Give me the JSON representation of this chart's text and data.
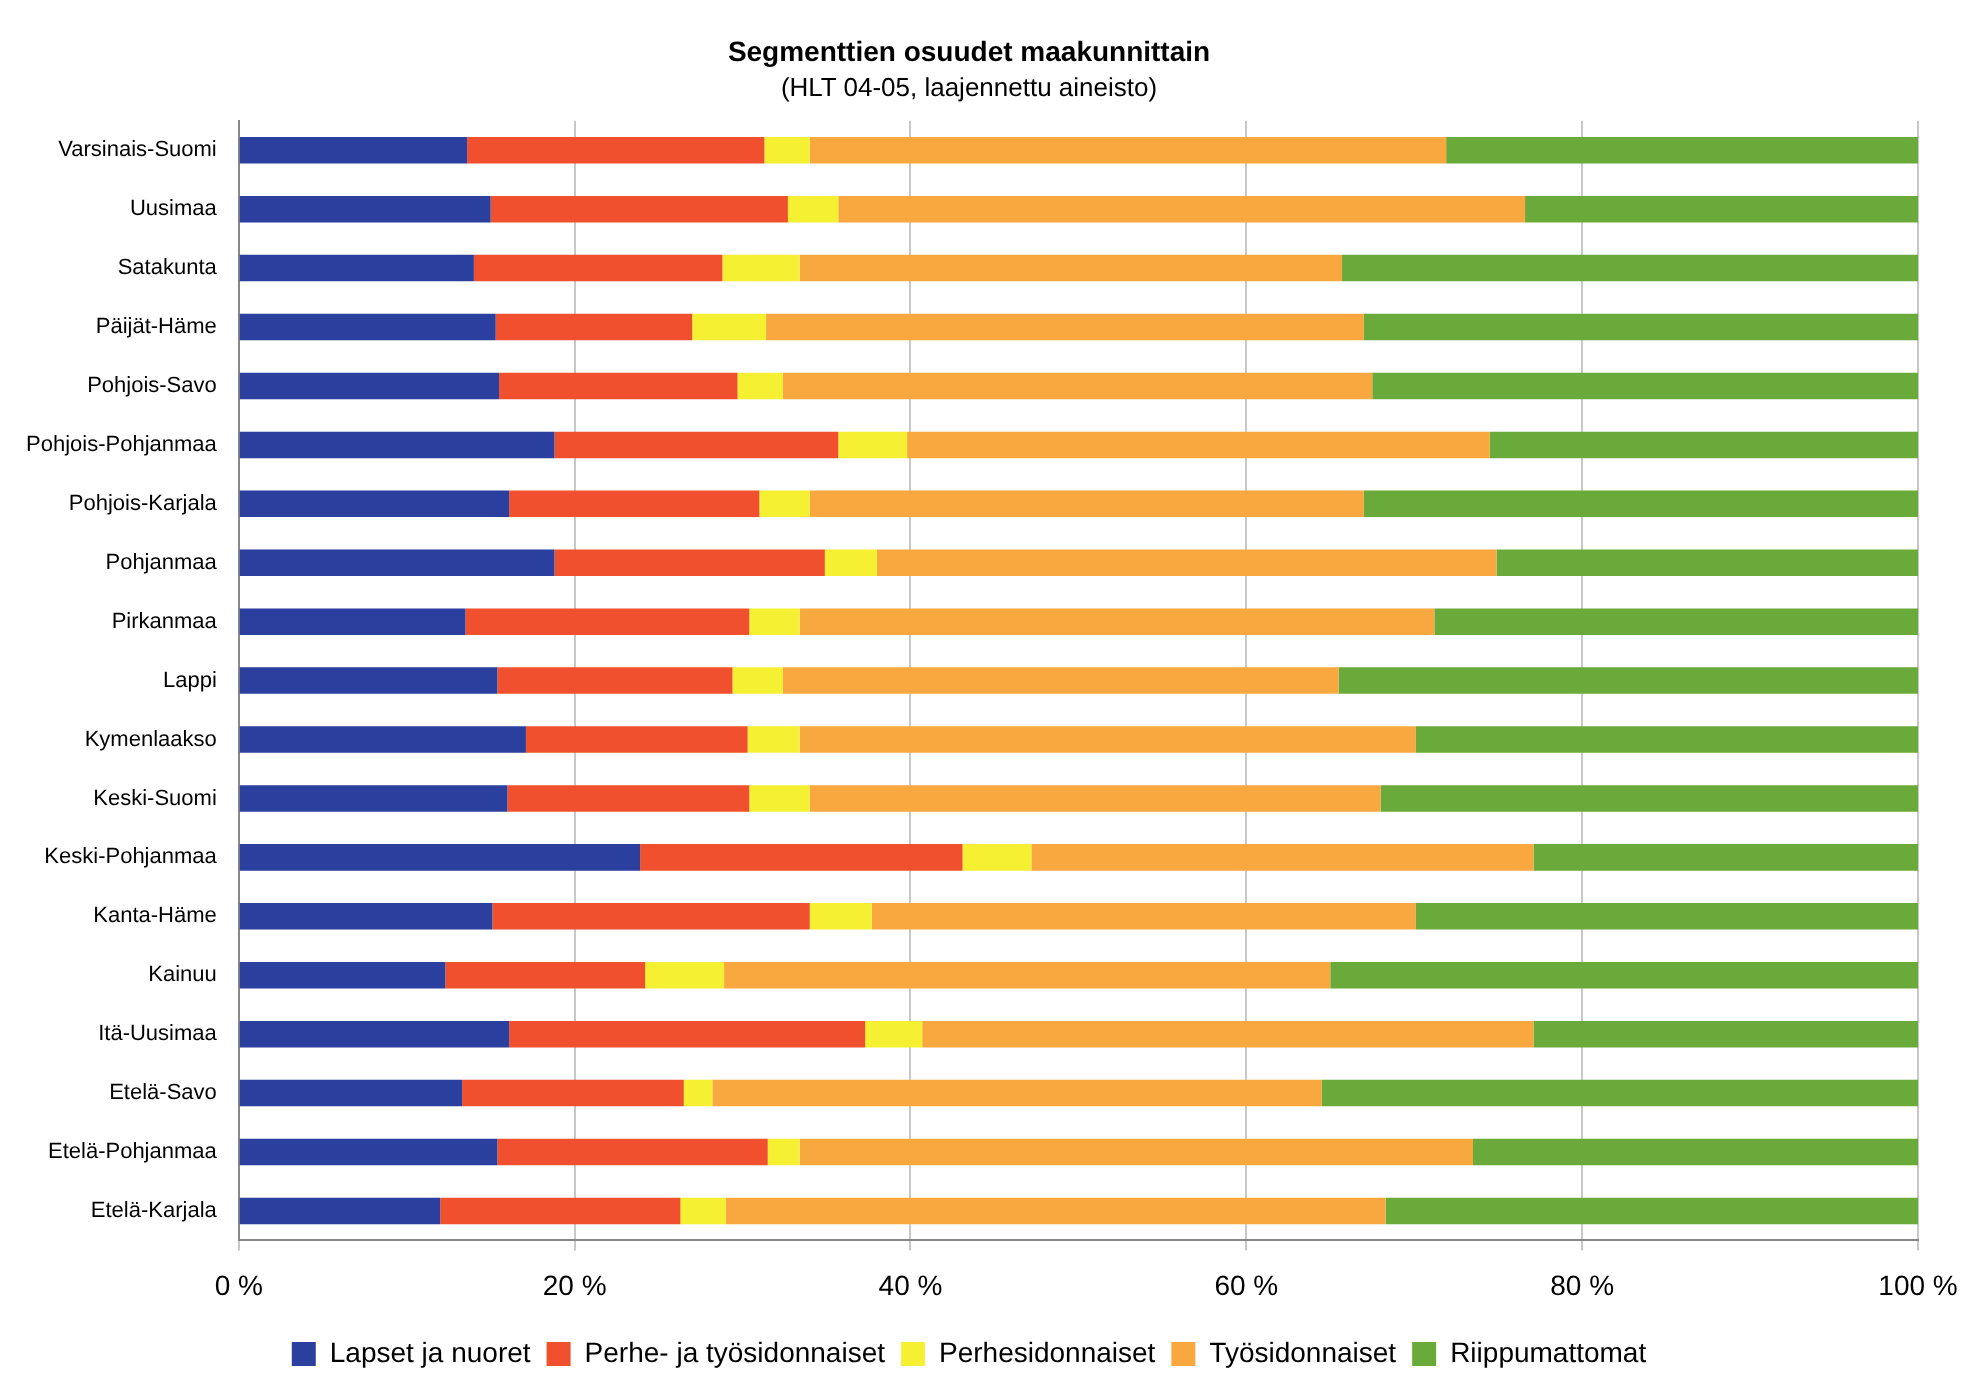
{
  "chart_data": {
    "type": "bar",
    "orientation": "horizontal",
    "stacked": true,
    "title": "Segmenttien osuudet maakunnittain",
    "subtitle": "(HLT 04-05, laajennettu aineisto)",
    "categories": [
      "Varsinais-Suomi",
      "Uusimaa",
      "Satakunta",
      "Päijät-Häme",
      "Pohjois-Savo",
      "Pohjois-Pohjanmaa",
      "Pohjois-Karjala",
      "Pohjanmaa",
      "Pirkanmaa",
      "Lappi",
      "Kymenlaakso",
      "Keski-Suomi",
      "Keski-Pohjanmaa",
      "Kanta-Häme",
      "Kainuu",
      "Itä-Uusimaa",
      "Etelä-Savo",
      "Etelä-Pohjanmaa",
      "Etelä-Karjala"
    ],
    "series": [
      {
        "name": "Lapset ja nuoret",
        "color": "#2a3f9e",
        "values": [
          13.6,
          15.0,
          14.0,
          15.3,
          15.5,
          18.8,
          16.1,
          18.8,
          13.5,
          15.4,
          17.1,
          16.0,
          23.9,
          15.1,
          12.3,
          16.1,
          13.3,
          15.4,
          12.0
        ]
      },
      {
        "name": "Perhe- ja työsidonnaiset",
        "color": "#f0502d",
        "values": [
          17.7,
          17.7,
          14.8,
          11.7,
          14.2,
          16.9,
          14.9,
          16.1,
          16.9,
          14.0,
          13.2,
          14.4,
          19.2,
          18.9,
          11.9,
          21.2,
          13.2,
          16.1,
          14.3
        ]
      },
      {
        "name": "Perhesidonnaiset",
        "color": "#f5f032",
        "values": [
          2.7,
          3.0,
          4.6,
          4.4,
          2.7,
          4.1,
          3.0,
          3.1,
          3.0,
          3.0,
          3.1,
          3.6,
          4.1,
          3.7,
          4.7,
          3.4,
          1.7,
          1.9,
          2.7
        ]
      },
      {
        "name": "Työsidonnaiset",
        "color": "#f8a83e",
        "values": [
          37.9,
          40.9,
          32.3,
          35.6,
          35.1,
          34.7,
          33.0,
          36.9,
          37.8,
          33.1,
          36.7,
          34.0,
          29.9,
          32.4,
          36.1,
          36.4,
          36.3,
          40.1,
          39.3
        ]
      },
      {
        "name": "Riippumattomat",
        "color": "#6aaa3a",
        "values": [
          28.1,
          23.4,
          34.3,
          33.0,
          32.5,
          25.5,
          33.0,
          25.1,
          28.8,
          34.5,
          29.9,
          32.0,
          22.9,
          29.9,
          35.0,
          22.9,
          35.5,
          26.5,
          31.7
        ]
      }
    ],
    "xlim": [
      0,
      100
    ],
    "xticks": [
      {
        "value": 0,
        "label": "0 %"
      },
      {
        "value": 20,
        "label": "20 %"
      },
      {
        "value": 40,
        "label": "40 %"
      },
      {
        "value": 60,
        "label": "60 %"
      },
      {
        "value": 80,
        "label": "80 %"
      },
      {
        "value": 100,
        "label": "100 %"
      }
    ],
    "grid": "x",
    "legend": "bottom"
  }
}
